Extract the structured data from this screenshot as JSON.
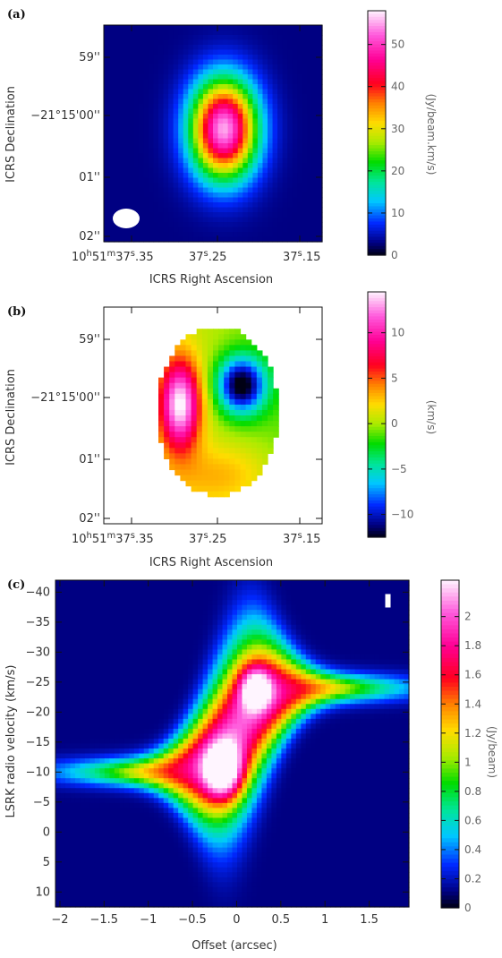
{
  "panels": [
    {
      "label": "(a)",
      "type": "heatmap",
      "xlabel": "ICRS Right Ascension",
      "ylabel": "ICRS Declination",
      "xticks": [
        {
          "h": "10",
          "m": "51",
          "s": "37",
          "frac": ".35",
          "full": true
        },
        {
          "s": "37",
          "frac": ".25"
        },
        {
          "s": "37",
          "frac": ".15"
        }
      ],
      "yticks": [
        {
          "text": "59''"
        },
        {
          "text": "−21°15'00''"
        },
        {
          "text": "01''"
        },
        {
          "text": "02''"
        }
      ],
      "colorbar": {
        "label": "(Jy/beam.km/s)",
        "ticks": [
          "0",
          "10",
          "20",
          "30",
          "40",
          "50"
        ],
        "range": [
          0,
          58
        ]
      },
      "beam": true
    },
    {
      "label": "(b)",
      "type": "heatmap",
      "xlabel": "ICRS Right Ascension",
      "ylabel": "ICRS Declination",
      "xticks": [
        {
          "h": "10",
          "m": "51",
          "s": "37",
          "frac": ".35",
          "full": true
        },
        {
          "s": "37",
          "frac": ".25"
        },
        {
          "s": "37",
          "frac": ".15"
        }
      ],
      "yticks": [
        {
          "text": "59''"
        },
        {
          "text": "−21°15'00''"
        },
        {
          "text": "01''"
        },
        {
          "text": "02''"
        }
      ],
      "colorbar": {
        "label": "(km/s)",
        "ticks": [
          "−10",
          "−5",
          "0",
          "5",
          "10"
        ],
        "range": [
          -12.5,
          14.5
        ]
      }
    },
    {
      "label": "(c)",
      "type": "heatmap",
      "xlabel": "Offset (arcsec)",
      "ylabel": "LSRK radio velocity  (km/s)",
      "xticks": [
        "−2",
        "−1.5",
        "−1",
        "−0.5",
        "0",
        "0.5",
        "1",
        "1.5"
      ],
      "yticks": [
        "−40",
        "−35",
        "−30",
        "−25",
        "−20",
        "−15",
        "−10",
        "−5",
        "0",
        "5",
        "10"
      ],
      "colorbar": {
        "label": "(Jy/beam)",
        "ticks": [
          "0",
          "0.2",
          "0.4",
          "0.6",
          "0.8",
          "1",
          "1.2",
          "1.4",
          "1.6",
          "1.8",
          "2"
        ],
        "range": [
          0,
          2.25
        ]
      }
    }
  ],
  "chart_data": [
    {
      "type": "heatmap",
      "title": "",
      "xlabel": "ICRS Right Ascension",
      "ylabel": "ICRS Declination",
      "colorbar_label": "(Jy/beam.km/s)",
      "value_range": [
        0,
        58
      ],
      "peak_value": 55,
      "peak_position": {
        "ra_s": 37.25,
        "dec_offset_arcsec": 0.2
      }
    },
    {
      "type": "heatmap",
      "title": "",
      "xlabel": "ICRS Right Ascension",
      "ylabel": "ICRS Declination",
      "colorbar_label": "(km/s)",
      "value_range": [
        -12.5,
        14.5
      ]
    },
    {
      "type": "heatmap",
      "title": "",
      "xlabel": "Offset (arcsec)",
      "ylabel": "LSRK radio velocity  (km/s)",
      "colorbar_label": "(Jy/beam)",
      "xlim": [
        -2.05,
        1.95
      ],
      "ylim": [
        12.5,
        -42
      ],
      "value_range": [
        0,
        2.25
      ],
      "peaks": [
        {
          "offset": -0.15,
          "velocity": -10,
          "value": 2.2
        },
        {
          "offset": 0.2,
          "velocity": -24,
          "value": 2.0
        }
      ]
    }
  ]
}
